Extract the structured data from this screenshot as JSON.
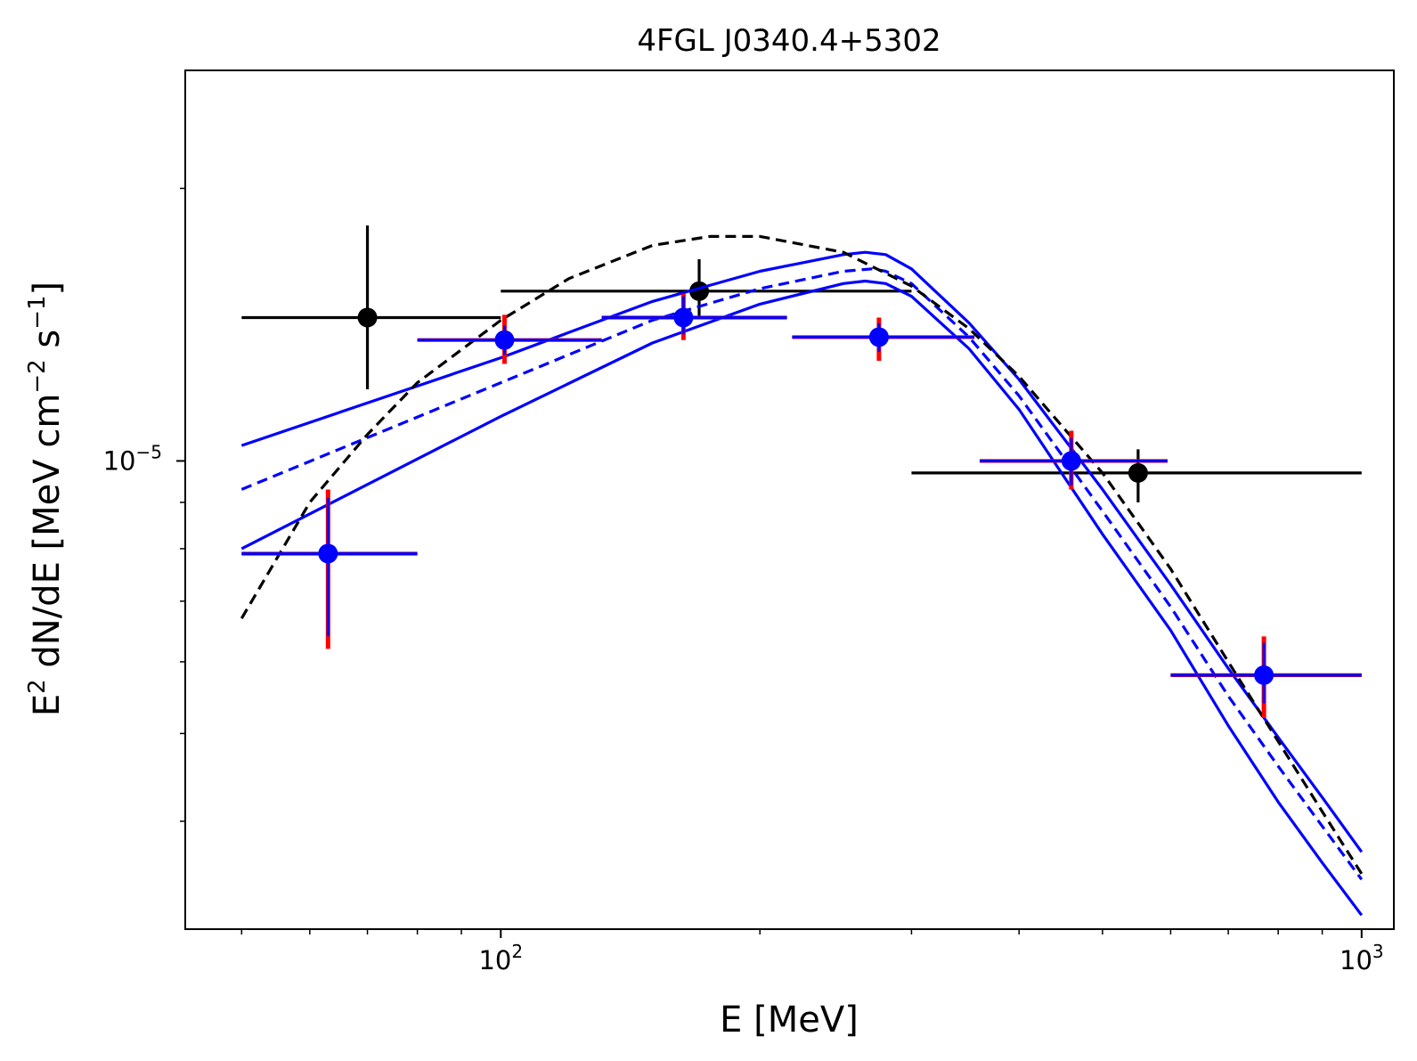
{
  "chart_data": {
    "type": "scatter",
    "title": "4FGL J0340.4+5302",
    "xlabel": "E [MeV]",
    "ylabel_main": "E",
    "ylabel_sup1": "2",
    "ylabel_mid": " dN/dE [MeV cm",
    "ylabel_sup2": "−2",
    "ylabel_mid2": " s",
    "ylabel_sup3": "−1",
    "ylabel_end": "]",
    "xscale": "log",
    "yscale": "log",
    "xlim": [
      43,
      1090
    ],
    "ylim": [
      3.04e-06,
      2.7e-05
    ],
    "x_ticks": [
      {
        "value": 100,
        "base": "10",
        "exp": "2"
      },
      {
        "value": 1000,
        "base": "10",
        "exp": "3"
      }
    ],
    "y_ticks": [
      {
        "value": 1e-05,
        "base": "10",
        "exp": "−5"
      }
    ],
    "colors": {
      "blue": "#0000ff",
      "red": "#ff0000",
      "black": "#000000"
    },
    "model_black_dashed": {
      "x": [
        50,
        60,
        70,
        80,
        100,
        120,
        150,
        175,
        200,
        250,
        300,
        350,
        400,
        500,
        600,
        700,
        800,
        900,
        1000
      ],
      "y": [
        6.7e-06,
        9e-06,
        1.07e-05,
        1.22e-05,
        1.43e-05,
        1.59e-05,
        1.73e-05,
        1.77e-05,
        1.77e-05,
        1.7e-05,
        1.56e-05,
        1.4e-05,
        1.24e-05,
        9.7e-06,
        7.6e-06,
        6e-06,
        4.9e-06,
        4.1e-06,
        3.5e-06
      ]
    },
    "model_blue_dashed": {
      "x": [
        50,
        100,
        150,
        200,
        250,
        270,
        280,
        300,
        350,
        400,
        500,
        600,
        700,
        800,
        900,
        1000
      ],
      "y": [
        9.3e-06,
        1.22e-05,
        1.43e-05,
        1.55e-05,
        1.62e-05,
        1.63e-05,
        1.62e-05,
        1.57e-05,
        1.37e-05,
        1.18e-05,
        8.8e-06,
        6.9e-06,
        5.5e-06,
        4.6e-06,
        3.95e-06,
        3.45e-06
      ]
    },
    "model_blue_upper": {
      "x": [
        50,
        100,
        150,
        200,
        250,
        265,
        280,
        300,
        350,
        400,
        500,
        600,
        700,
        800,
        900,
        1000
      ],
      "y": [
        1.04e-05,
        1.3e-05,
        1.5e-05,
        1.62e-05,
        1.69e-05,
        1.7e-05,
        1.69e-05,
        1.63e-05,
        1.42e-05,
        1.23e-05,
        9.3e-06,
        7.3e-06,
        5.9e-06,
        4.95e-06,
        4.25e-06,
        3.7e-06
      ]
    },
    "model_blue_lower": {
      "x": [
        50,
        100,
        150,
        200,
        250,
        265,
        280,
        300,
        350,
        400,
        500,
        600,
        700,
        800,
        900,
        1000
      ],
      "y": [
        8e-06,
        1.12e-05,
        1.35e-05,
        1.49e-05,
        1.57e-05,
        1.58e-05,
        1.57e-05,
        1.52e-05,
        1.33e-05,
        1.14e-05,
        8.3e-06,
        6.5e-06,
        5.1e-06,
        4.2e-06,
        3.6e-06,
        3.15e-06
      ]
    },
    "points_black": [
      {
        "x": 70,
        "y": 1.44e-05,
        "xlo": 50,
        "xhi": 100,
        "ylo": 1.2e-05,
        "yhi": 1.82e-05
      },
      {
        "x": 170,
        "y": 1.54e-05,
        "xlo": 100,
        "xhi": 300,
        "ylo": 1.44e-05,
        "yhi": 1.67e-05
      },
      {
        "x": 550,
        "y": 9.7e-06,
        "xlo": 300,
        "xhi": 1000,
        "ylo": 9e-06,
        "yhi": 1.03e-05
      }
    ],
    "points_blue": [
      {
        "x": 63,
        "y": 7.9e-06,
        "xlo": 50,
        "xhi": 80,
        "ylo": 6.4e-06,
        "yhi": 9.1e-06,
        "rlo": 6.2e-06,
        "rhi": 9.3e-06
      },
      {
        "x": 101,
        "y": 1.36e-05,
        "xlo": 80,
        "xhi": 131,
        "ylo": 1.31e-05,
        "yhi": 1.41e-05,
        "rlo": 1.28e-05,
        "rhi": 1.45e-05
      },
      {
        "x": 163,
        "y": 1.44e-05,
        "xlo": 131,
        "xhi": 215,
        "ylo": 1.38e-05,
        "yhi": 1.52e-05,
        "rlo": 1.36e-05,
        "rhi": 1.53e-05
      },
      {
        "x": 275,
        "y": 1.37e-05,
        "xlo": 218,
        "xhi": 355,
        "ylo": 1.32e-05,
        "yhi": 1.42e-05,
        "rlo": 1.29e-05,
        "rhi": 1.44e-05
      },
      {
        "x": 460,
        "y": 1e-05,
        "xlo": 360,
        "xhi": 595,
        "ylo": 9.4e-06,
        "yhi": 1.06e-05,
        "rlo": 9.3e-06,
        "rhi": 1.08e-05
      },
      {
        "x": 770,
        "y": 5.8e-06,
        "xlo": 600,
        "xhi": 1000,
        "ylo": 5.4e-06,
        "yhi": 6.3e-06,
        "rlo": 5.2e-06,
        "rhi": 6.4e-06
      }
    ]
  }
}
